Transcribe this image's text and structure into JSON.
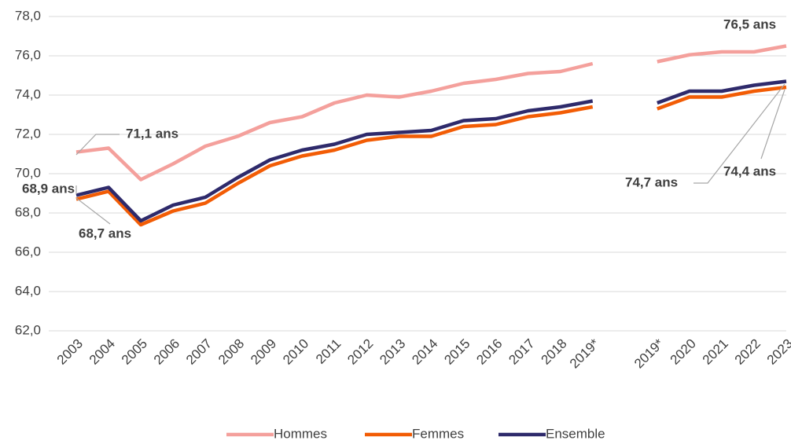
{
  "chart_data": {
    "type": "line",
    "categories": [
      "2003",
      "2004",
      "2005",
      "2006",
      "2007",
      "2008",
      "2009",
      "2010",
      "2011",
      "2012",
      "2013",
      "2014",
      "2015",
      "2016",
      "2017",
      "2018",
      "2019*",
      null,
      "2019*",
      "2020",
      "2021",
      "2022",
      "2023"
    ],
    "series": [
      {
        "name": "Hommes",
        "color": "#f4a09c",
        "values": [
          71.1,
          71.3,
          69.7,
          70.5,
          71.4,
          71.9,
          72.6,
          72.9,
          73.6,
          74.0,
          73.9,
          74.2,
          74.6,
          74.8,
          75.1,
          75.2,
          75.6,
          null,
          75.7,
          76.05,
          76.2,
          76.2,
          76.5
        ]
      },
      {
        "name": "Femmes",
        "color": "#f25c05",
        "values": [
          68.7,
          69.1,
          67.4,
          68.1,
          68.5,
          69.5,
          70.4,
          70.9,
          71.2,
          71.7,
          71.9,
          71.9,
          72.4,
          72.5,
          72.9,
          73.1,
          73.4,
          null,
          73.3,
          73.9,
          73.9,
          74.2,
          74.4
        ]
      },
      {
        "name": "Ensemble",
        "color": "#2e2a6b",
        "values": [
          68.9,
          69.3,
          67.6,
          68.4,
          68.8,
          69.8,
          70.7,
          71.2,
          71.5,
          72.0,
          72.1,
          72.2,
          72.7,
          72.8,
          73.2,
          73.4,
          73.7,
          null,
          73.6,
          74.2,
          74.2,
          74.5,
          74.7
        ]
      }
    ],
    "annotations": [
      "71,1 ans",
      "68,9 ans",
      "68,7 ans",
      "76,5 ans",
      "74,7 ans",
      "74,4 ans"
    ],
    "ylim": [
      62,
      78
    ],
    "yticks": [
      {
        "value": 62,
        "label": "62,0"
      },
      {
        "value": 64,
        "label": "64,0"
      },
      {
        "value": 66,
        "label": "66,0"
      },
      {
        "value": 68,
        "label": "68,0"
      },
      {
        "value": 70,
        "label": "70,0"
      },
      {
        "value": 72,
        "label": "72,0"
      },
      {
        "value": 74,
        "label": "74,0"
      },
      {
        "value": 76,
        "label": "76,0"
      },
      {
        "value": 78,
        "label": "78,0"
      }
    ],
    "grid": true,
    "legend": "bottom"
  }
}
